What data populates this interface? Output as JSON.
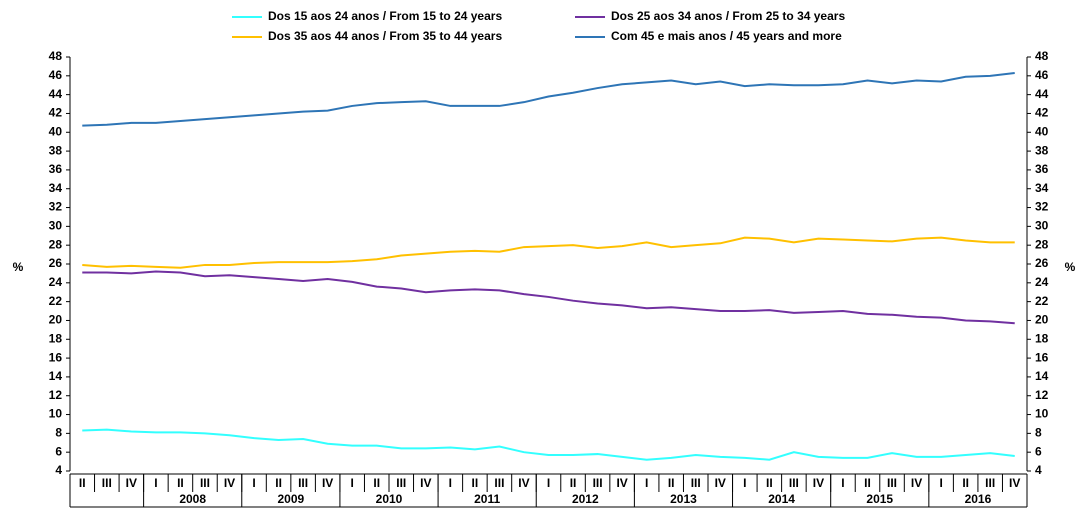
{
  "chart_data": {
    "type": "line",
    "y_label": "%",
    "y2_label": "%",
    "categories": [
      "II",
      "III",
      "IV",
      "I",
      "II",
      "III",
      "IV",
      "I",
      "II",
      "III",
      "IV",
      "I",
      "II",
      "III",
      "IV",
      "I",
      "II",
      "III",
      "IV",
      "I",
      "II",
      "III",
      "IV",
      "I",
      "II",
      "III",
      "IV",
      "I",
      "II",
      "III",
      "IV",
      "I",
      "II",
      "III",
      "IV",
      "I",
      "II",
      "III",
      "IV"
    ],
    "year_labels": [
      null,
      "2008",
      "2009",
      "2010",
      "2011",
      "2012",
      "2013",
      "2014",
      "2015",
      "2016"
    ],
    "ylim": [
      4,
      48
    ],
    "yticks": [
      4,
      6,
      8,
      10,
      12,
      14,
      16,
      18,
      20,
      22,
      24,
      26,
      28,
      30,
      32,
      34,
      36,
      38,
      40,
      42,
      44,
      46,
      48
    ],
    "y2lim": [
      4,
      48
    ],
    "y2ticks": [
      4,
      6,
      8,
      10,
      12,
      14,
      16,
      18,
      20,
      22,
      24,
      26,
      28,
      30,
      32,
      34,
      36,
      38,
      40,
      42,
      44,
      46,
      48
    ],
    "series": [
      {
        "name": "Dos 15 aos 24 anos / From 15 to 24 years",
        "color": "#33ffff",
        "values": [
          8.3,
          8.4,
          8.2,
          8.1,
          8.1,
          8.0,
          7.8,
          7.5,
          7.3,
          7.4,
          6.9,
          6.7,
          6.7,
          6.4,
          6.4,
          6.5,
          6.3,
          6.6,
          6.0,
          5.7,
          5.7,
          5.8,
          5.5,
          5.2,
          5.4,
          5.7,
          5.5,
          5.4,
          5.2,
          6.0,
          5.5,
          5.4,
          5.4,
          5.9,
          5.5,
          5.5,
          5.7,
          5.9,
          5.6
        ]
      },
      {
        "name": "Dos 25 aos 34 anos / From 25 to 34 years",
        "color": "#7030a0",
        "values": [
          25.1,
          25.1,
          25.0,
          25.2,
          25.1,
          24.7,
          24.8,
          24.6,
          24.4,
          24.2,
          24.4,
          24.1,
          23.6,
          23.4,
          23.0,
          23.2,
          23.3,
          23.2,
          22.8,
          22.5,
          22.1,
          21.8,
          21.6,
          21.3,
          21.4,
          21.2,
          21.0,
          21.0,
          21.1,
          20.8,
          20.9,
          21.0,
          20.7,
          20.6,
          20.4,
          20.3,
          20.0,
          19.9,
          19.7
        ]
      },
      {
        "name": "Dos 35 aos 44 anos / From 35 to 44 years",
        "color": "#ffc000",
        "values": [
          25.9,
          25.7,
          25.8,
          25.7,
          25.6,
          25.9,
          25.9,
          26.1,
          26.2,
          26.2,
          26.2,
          26.3,
          26.5,
          26.9,
          27.1,
          27.3,
          27.4,
          27.3,
          27.8,
          27.9,
          28.0,
          27.7,
          27.9,
          28.3,
          27.8,
          28.0,
          28.2,
          28.8,
          28.7,
          28.3,
          28.7,
          28.6,
          28.5,
          28.4,
          28.7,
          28.8,
          28.5,
          28.3,
          28.3
        ]
      },
      {
        "name": "Com 45 e mais anos / 45 years and more",
        "color": "#2e75b6",
        "values": [
          40.7,
          40.8,
          41.0,
          41.0,
          41.2,
          41.4,
          41.6,
          41.8,
          42.0,
          42.2,
          42.3,
          42.8,
          43.1,
          43.2,
          43.3,
          42.8,
          42.8,
          42.8,
          43.2,
          43.8,
          44.2,
          44.7,
          45.1,
          45.3,
          45.5,
          45.1,
          45.4,
          44.9,
          45.1,
          45.0,
          45.0,
          45.1,
          45.5,
          45.2,
          45.5,
          45.4,
          45.9,
          46.0,
          46.3
        ]
      }
    ]
  }
}
